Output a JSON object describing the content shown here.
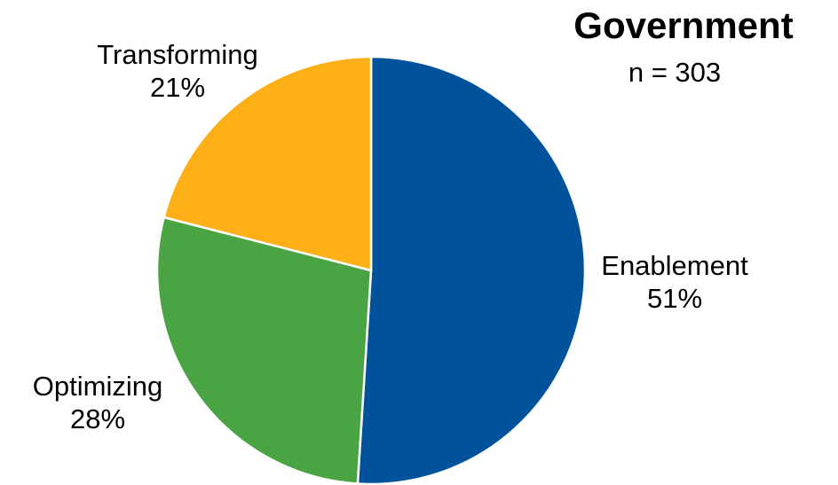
{
  "chart_data": {
    "type": "pie",
    "title": "Government",
    "subtitle": "n = 303",
    "slices": [
      {
        "label": "Enablement",
        "value": 51,
        "display": "51%",
        "color": "#00529B"
      },
      {
        "label": "Optimizing",
        "value": 28,
        "display": "28%",
        "color": "#4BA444"
      },
      {
        "label": "Transforming",
        "value": 21,
        "display": "21%",
        "color": "#FCAF17"
      }
    ],
    "start": "12 o'clock, clockwise",
    "legend": "none"
  }
}
